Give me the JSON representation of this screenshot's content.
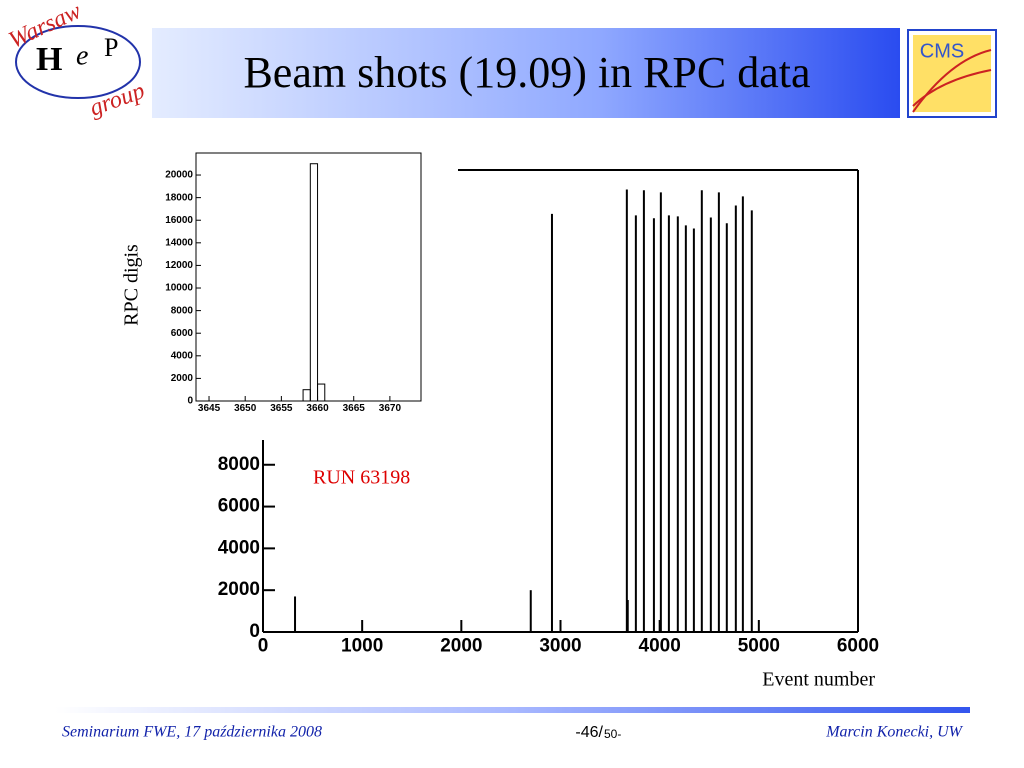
{
  "header": {
    "title": "Beam shots (19.09) in RPC data"
  },
  "logo_left": {
    "top": "Warsaw",
    "h": "H",
    "e": "e",
    "p": "P",
    "bottom": "group"
  },
  "logo_right": {
    "text": "CMS"
  },
  "footer": {
    "left": "Seminarium FWE, 17 października 2008",
    "page": "-46/",
    "total": "50-",
    "right": "Marcin Konecki,  UW"
  },
  "chart_data": [
    {
      "type": "histogram",
      "ylabel": "RPC digis",
      "color": "#000000",
      "bins": [
        3658,
        3659,
        3660,
        3661
      ],
      "values": [
        1000,
        21000,
        1500
      ],
      "xlim": [
        3643.2,
        3674.3
      ],
      "xticks": [
        3645,
        3650,
        3655,
        3660,
        3665,
        3670
      ],
      "ylim": [
        0,
        21950
      ],
      "yticks": [
        0,
        2000,
        4000,
        6000,
        8000,
        10000,
        12000,
        14000,
        16000,
        18000,
        20000
      ]
    },
    {
      "type": "bar",
      "xlabel": "Event number",
      "annotation": "RUN 63198",
      "color": "#000000",
      "x": [
        323,
        2700,
        2914,
        3669,
        3678,
        3760,
        3841,
        3942,
        4012,
        4093,
        4183,
        4264,
        4345,
        4425,
        4516,
        4597,
        4677,
        4768,
        4839,
        4929
      ],
      "values": [
        1700,
        2000,
        20000,
        21170,
        1530,
        19930,
        21130,
        19790,
        21030,
        19930,
        19880,
        19450,
        19300,
        21130,
        19830,
        21030,
        19550,
        20400,
        20840,
        20170
      ],
      "xlim": [
        0,
        6000
      ],
      "xticks": [
        0,
        1000,
        2000,
        3000,
        4000,
        5000,
        6000
      ],
      "ylim": [
        0,
        22100
      ],
      "yticks": [
        0,
        2000,
        4000,
        6000,
        8000
      ]
    }
  ]
}
